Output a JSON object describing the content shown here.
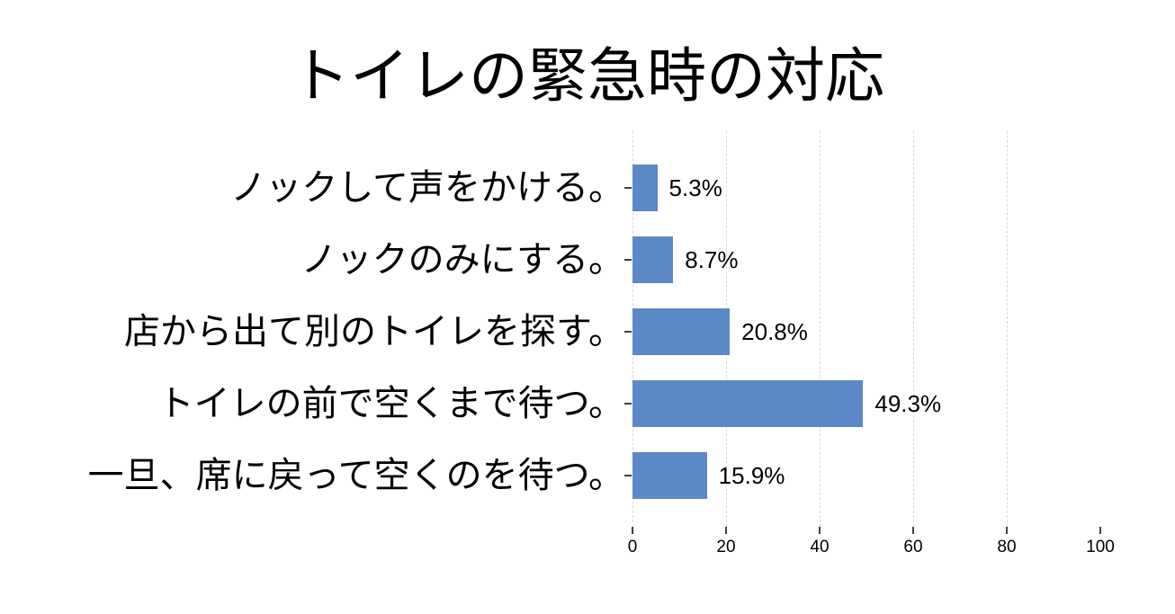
{
  "chart_data": {
    "type": "bar",
    "orientation": "horizontal",
    "title": "トイレの緊急時の対応",
    "categories": [
      "ノックして声をかける。",
      "ノックのみにする。",
      "店から出て別のトイレを探す。",
      "トイレの前で空くまで待つ。",
      "一旦、席に戻って空くのを待つ。"
    ],
    "values": [
      5.3,
      8.7,
      20.8,
      49.3,
      15.9
    ],
    "data_labels": [
      "5.3%",
      "8.7%",
      "20.8%",
      "49.3%",
      "15.9%"
    ],
    "x_ticks": [
      0,
      20,
      40,
      60,
      80,
      100
    ],
    "gridline_ticks": [
      0,
      20,
      40,
      60,
      80
    ],
    "xlim": [
      0,
      100
    ],
    "xlabel": "",
    "ylabel": "",
    "legend": "none",
    "grid": "vertical-dashed",
    "bar_color": "#5b89c8",
    "gridline_color": "#d9d9d9",
    "tick_color": "#404040",
    "text_color": "#000000",
    "background_color": "#ffffff"
  }
}
